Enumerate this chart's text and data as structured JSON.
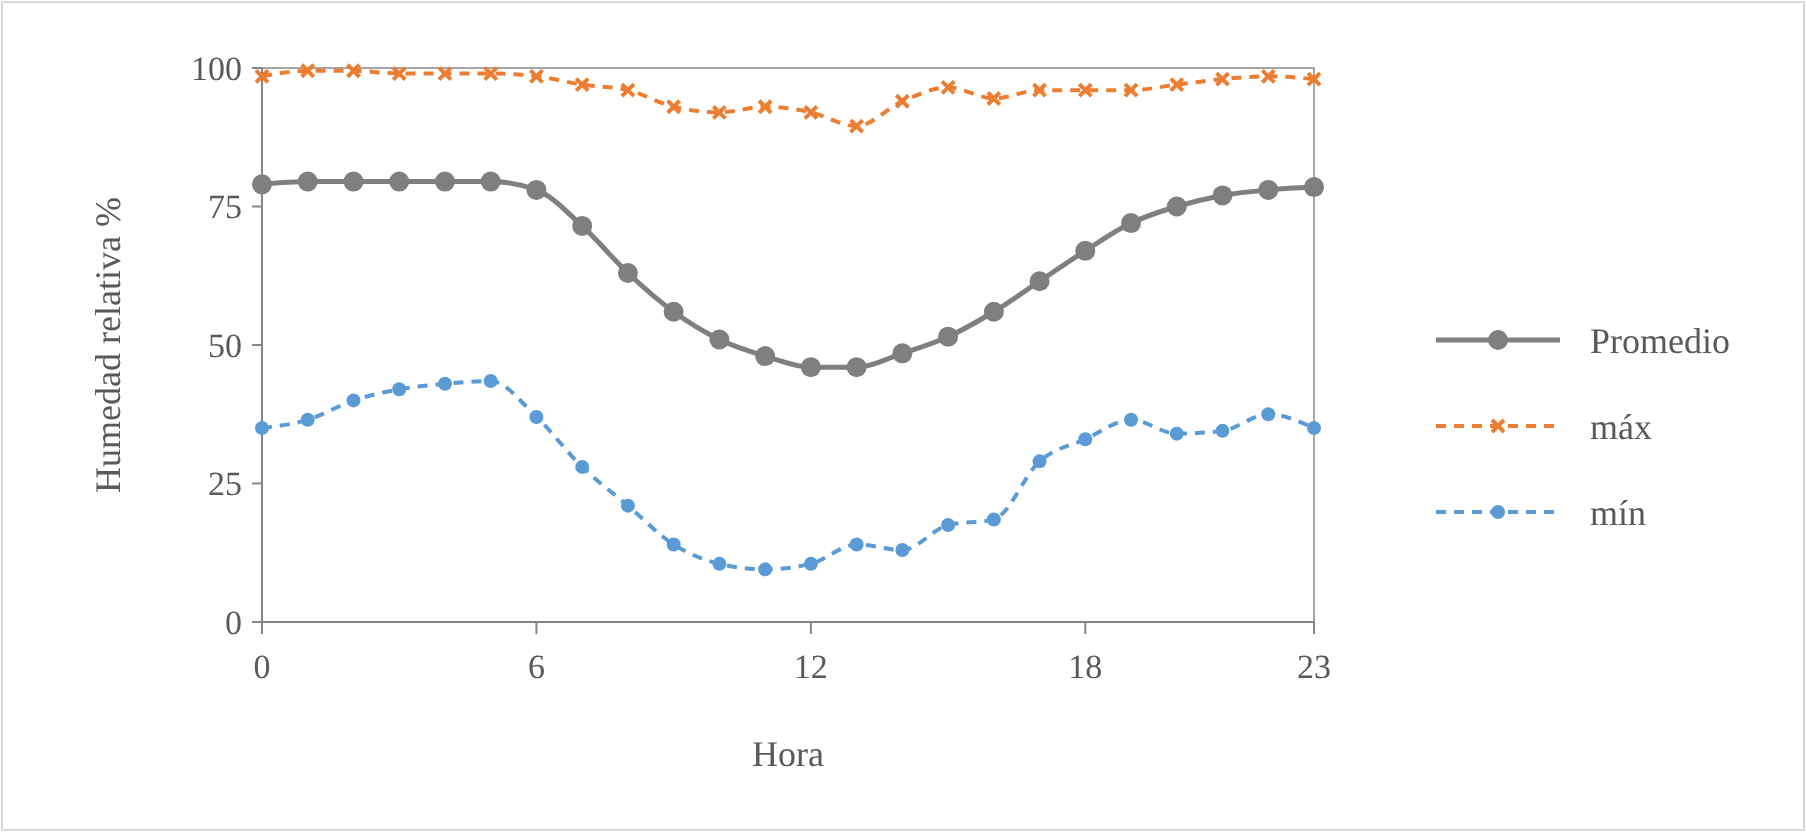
{
  "chart_data": {
    "type": "line",
    "xlabel": "Hora",
    "ylabel": "Humedad relativa  %",
    "x": [
      0,
      1,
      2,
      3,
      4,
      5,
      6,
      7,
      8,
      9,
      10,
      11,
      12,
      13,
      14,
      15,
      16,
      17,
      18,
      19,
      20,
      21,
      22,
      23
    ],
    "xlim": [
      0,
      23
    ],
    "xticks": [
      0,
      6,
      12,
      18,
      23
    ],
    "ylim": [
      0,
      100
    ],
    "yticks": [
      0,
      25,
      50,
      75,
      100
    ],
    "legend": "right",
    "grid": false,
    "series": [
      {
        "name": "Promedio",
        "color": "#7f7f7f",
        "marker": "circle",
        "line_style": "solid",
        "values": [
          79,
          79.5,
          79.5,
          79.5,
          79.5,
          79.5,
          78,
          71.5,
          63,
          56,
          51,
          48,
          46,
          46,
          48.5,
          51.5,
          56,
          61.5,
          67,
          72,
          75,
          77,
          78,
          78.5
        ]
      },
      {
        "name": "máx",
        "color": "#ed7d31",
        "marker": "cross",
        "line_style": "dashed",
        "values": [
          98.5,
          99.5,
          99.5,
          99,
          99,
          99,
          98.5,
          97,
          96,
          93,
          92,
          93,
          92,
          89.5,
          94,
          96.5,
          94.5,
          96,
          96,
          96,
          97,
          98,
          98.5,
          98
        ]
      },
      {
        "name": "mín",
        "color": "#5b9bd5",
        "marker": "circle",
        "line_style": "dashed",
        "values": [
          35,
          36.5,
          40,
          42,
          43,
          43.5,
          37,
          28,
          21,
          14,
          10.5,
          9.5,
          10.5,
          14,
          13,
          17.5,
          18.5,
          29,
          33,
          36.5,
          34,
          34.5,
          37.5,
          35
        ]
      }
    ]
  }
}
